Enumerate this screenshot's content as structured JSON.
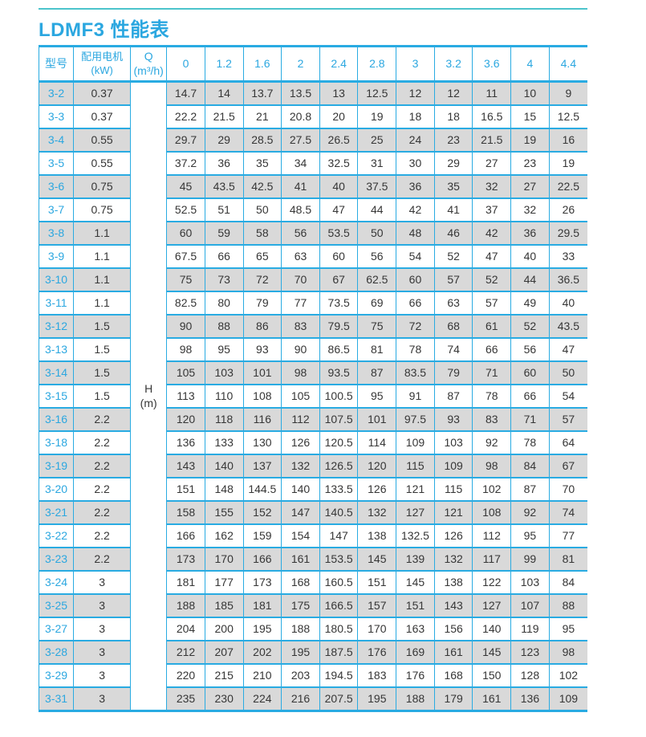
{
  "page": {
    "title": "LDMF3 性能表",
    "accent_color": "#2ba7e0",
    "border_color": "#29abe2",
    "stripe_color": "#d9d9d9",
    "rule_color": "#4cc4cc"
  },
  "table": {
    "headers": {
      "model": "型号",
      "motor_line1": "配用电机",
      "motor_line2": "(kW)",
      "flow_line1": "Q",
      "flow_line2": "(m³/h)"
    },
    "flow_columns": [
      "0",
      "1.2",
      "1.6",
      "2",
      "2.4",
      "2.8",
      "3",
      "3.2",
      "3.6",
      "4",
      "4.4"
    ],
    "head_unit_line1": "H",
    "head_unit_line2": "(m)",
    "rows": [
      {
        "model": "3-2",
        "kw": "0.37",
        "h": [
          "14.7",
          "14",
          "13.7",
          "13.5",
          "13",
          "12.5",
          "12",
          "12",
          "11",
          "10",
          "9"
        ]
      },
      {
        "model": "3-3",
        "kw": "0.37",
        "h": [
          "22.2",
          "21.5",
          "21",
          "20.8",
          "20",
          "19",
          "18",
          "18",
          "16.5",
          "15",
          "12.5"
        ]
      },
      {
        "model": "3-4",
        "kw": "0.55",
        "h": [
          "29.7",
          "29",
          "28.5",
          "27.5",
          "26.5",
          "25",
          "24",
          "23",
          "21.5",
          "19",
          "16"
        ]
      },
      {
        "model": "3-5",
        "kw": "0.55",
        "h": [
          "37.2",
          "36",
          "35",
          "34",
          "32.5",
          "31",
          "30",
          "29",
          "27",
          "23",
          "19"
        ]
      },
      {
        "model": "3-6",
        "kw": "0.75",
        "h": [
          "45",
          "43.5",
          "42.5",
          "41",
          "40",
          "37.5",
          "36",
          "35",
          "32",
          "27",
          "22.5"
        ]
      },
      {
        "model": "3-7",
        "kw": "0.75",
        "h": [
          "52.5",
          "51",
          "50",
          "48.5",
          "47",
          "44",
          "42",
          "41",
          "37",
          "32",
          "26"
        ]
      },
      {
        "model": "3-8",
        "kw": "1.1",
        "h": [
          "60",
          "59",
          "58",
          "56",
          "53.5",
          "50",
          "48",
          "46",
          "42",
          "36",
          "29.5"
        ]
      },
      {
        "model": "3-9",
        "kw": "1.1",
        "h": [
          "67.5",
          "66",
          "65",
          "63",
          "60",
          "56",
          "54",
          "52",
          "47",
          "40",
          "33"
        ]
      },
      {
        "model": "3-10",
        "kw": "1.1",
        "h": [
          "75",
          "73",
          "72",
          "70",
          "67",
          "62.5",
          "60",
          "57",
          "52",
          "44",
          "36.5"
        ]
      },
      {
        "model": "3-11",
        "kw": "1.1",
        "h": [
          "82.5",
          "80",
          "79",
          "77",
          "73.5",
          "69",
          "66",
          "63",
          "57",
          "49",
          "40"
        ]
      },
      {
        "model": "3-12",
        "kw": "1.5",
        "h": [
          "90",
          "88",
          "86",
          "83",
          "79.5",
          "75",
          "72",
          "68",
          "61",
          "52",
          "43.5"
        ]
      },
      {
        "model": "3-13",
        "kw": "1.5",
        "h": [
          "98",
          "95",
          "93",
          "90",
          "86.5",
          "81",
          "78",
          "74",
          "66",
          "56",
          "47"
        ]
      },
      {
        "model": "3-14",
        "kw": "1.5",
        "h": [
          "105",
          "103",
          "101",
          "98",
          "93.5",
          "87",
          "83.5",
          "79",
          "71",
          "60",
          "50"
        ]
      },
      {
        "model": "3-15",
        "kw": "1.5",
        "h": [
          "113",
          "110",
          "108",
          "105",
          "100.5",
          "95",
          "91",
          "87",
          "78",
          "66",
          "54"
        ]
      },
      {
        "model": "3-16",
        "kw": "2.2",
        "h": [
          "120",
          "118",
          "116",
          "112",
          "107.5",
          "101",
          "97.5",
          "93",
          "83",
          "71",
          "57"
        ]
      },
      {
        "model": "3-18",
        "kw": "2.2",
        "h": [
          "136",
          "133",
          "130",
          "126",
          "120.5",
          "114",
          "109",
          "103",
          "92",
          "78",
          "64"
        ]
      },
      {
        "model": "3-19",
        "kw": "2.2",
        "h": [
          "143",
          "140",
          "137",
          "132",
          "126.5",
          "120",
          "115",
          "109",
          "98",
          "84",
          "67"
        ]
      },
      {
        "model": "3-20",
        "kw": "2.2",
        "h": [
          "151",
          "148",
          "144.5",
          "140",
          "133.5",
          "126",
          "121",
          "115",
          "102",
          "87",
          "70"
        ]
      },
      {
        "model": "3-21",
        "kw": "2.2",
        "h": [
          "158",
          "155",
          "152",
          "147",
          "140.5",
          "132",
          "127",
          "121",
          "108",
          "92",
          "74"
        ]
      },
      {
        "model": "3-22",
        "kw": "2.2",
        "h": [
          "166",
          "162",
          "159",
          "154",
          "147",
          "138",
          "132.5",
          "126",
          "112",
          "95",
          "77"
        ]
      },
      {
        "model": "3-23",
        "kw": "2.2",
        "h": [
          "173",
          "170",
          "166",
          "161",
          "153.5",
          "145",
          "139",
          "132",
          "117",
          "99",
          "81"
        ]
      },
      {
        "model": "3-24",
        "kw": "3",
        "h": [
          "181",
          "177",
          "173",
          "168",
          "160.5",
          "151",
          "145",
          "138",
          "122",
          "103",
          "84"
        ]
      },
      {
        "model": "3-25",
        "kw": "3",
        "h": [
          "188",
          "185",
          "181",
          "175",
          "166.5",
          "157",
          "151",
          "143",
          "127",
          "107",
          "88"
        ]
      },
      {
        "model": "3-27",
        "kw": "3",
        "h": [
          "204",
          "200",
          "195",
          "188",
          "180.5",
          "170",
          "163",
          "156",
          "140",
          "119",
          "95"
        ]
      },
      {
        "model": "3-28",
        "kw": "3",
        "h": [
          "212",
          "207",
          "202",
          "195",
          "187.5",
          "176",
          "169",
          "161",
          "145",
          "123",
          "98"
        ]
      },
      {
        "model": "3-29",
        "kw": "3",
        "h": [
          "220",
          "215",
          "210",
          "203",
          "194.5",
          "183",
          "176",
          "168",
          "150",
          "128",
          "102"
        ]
      },
      {
        "model": "3-31",
        "kw": "3",
        "h": [
          "235",
          "230",
          "224",
          "216",
          "207.5",
          "195",
          "188",
          "179",
          "161",
          "136",
          "109"
        ]
      }
    ]
  }
}
